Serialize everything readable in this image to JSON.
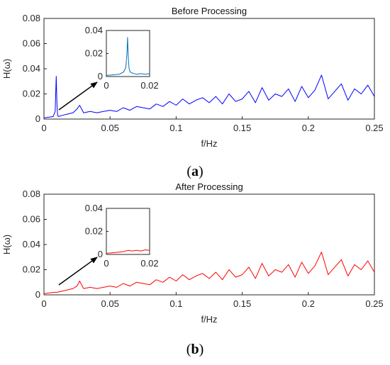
{
  "figure": {
    "panels": [
      {
        "label_left": "(",
        "label_letter": "a",
        "label_right": ")"
      },
      {
        "label_left": "(",
        "label_letter": "b",
        "label_right": ")"
      }
    ]
  },
  "chart_data": [
    {
      "type": "line",
      "title": "Before Processing",
      "xlabel": "f/Hz",
      "ylabel": "H(ω)",
      "xlim": [
        0,
        0.25
      ],
      "ylim": [
        0,
        0.08
      ],
      "xticks": [
        "0",
        "0.05",
        "0.1",
        "0.15",
        "0.2",
        "0.25"
      ],
      "yticks": [
        "0",
        "0.02",
        "0.04",
        "0.06",
        "0.08"
      ],
      "color": "#0000ff",
      "grid": false,
      "series": [
        {
          "x": [
            0,
            0.004,
            0.007,
            0.0085,
            0.0093,
            0.0098,
            0.0103,
            0.011,
            0.014,
            0.018,
            0.022,
            0.025,
            0.027,
            0.03,
            0.035,
            0.04,
            0.045,
            0.05,
            0.055,
            0.06,
            0.065,
            0.07,
            0.075,
            0.08,
            0.085,
            0.09,
            0.095,
            0.1,
            0.105,
            0.11,
            0.115,
            0.12,
            0.125,
            0.13,
            0.135,
            0.14,
            0.145,
            0.15,
            0.155,
            0.16,
            0.165,
            0.17,
            0.175,
            0.18,
            0.185,
            0.19,
            0.195,
            0.2,
            0.205,
            0.21,
            0.215,
            0.22,
            0.225,
            0.23,
            0.235,
            0.24,
            0.245,
            0.25
          ],
          "y": [
            0.001,
            0.0015,
            0.002,
            0.006,
            0.034,
            0.012,
            0.003,
            0.002,
            0.003,
            0.004,
            0.005,
            0.008,
            0.011,
            0.005,
            0.006,
            0.005,
            0.006,
            0.007,
            0.006,
            0.009,
            0.007,
            0.01,
            0.009,
            0.008,
            0.012,
            0.01,
            0.014,
            0.011,
            0.016,
            0.012,
            0.015,
            0.017,
            0.013,
            0.018,
            0.012,
            0.02,
            0.014,
            0.016,
            0.022,
            0.013,
            0.025,
            0.015,
            0.02,
            0.018,
            0.024,
            0.014,
            0.026,
            0.017,
            0.023,
            0.035,
            0.016,
            0.022,
            0.028,
            0.015,
            0.024,
            0.02,
            0.027,
            0.018
          ]
        }
      ],
      "inset": {
        "xlim": [
          0,
          0.02
        ],
        "ylim": [
          0,
          0.04
        ],
        "xticks": [
          "0",
          "0.02"
        ],
        "yticks": [
          "0",
          "0.02",
          "0.04"
        ],
        "color": "#0072bd",
        "x": [
          0,
          0.003,
          0.006,
          0.008,
          0.009,
          0.0095,
          0.0098,
          0.0101,
          0.0105,
          0.011,
          0.012,
          0.014,
          0.016,
          0.018,
          0.02
        ],
        "y": [
          0.001,
          0.0015,
          0.002,
          0.004,
          0.008,
          0.02,
          0.034,
          0.018,
          0.007,
          0.004,
          0.003,
          0.002,
          0.0025,
          0.002,
          0.0025
        ]
      }
    },
    {
      "type": "line",
      "title": "After Processing",
      "xlabel": "f/Hz",
      "ylabel": "H(ω)",
      "xlim": [
        0,
        0.25
      ],
      "ylim": [
        0,
        0.08
      ],
      "xticks": [
        "0",
        "0.05",
        "0.1",
        "0.15",
        "0.2",
        "0.25"
      ],
      "yticks": [
        "0",
        "0.02",
        "0.04",
        "0.06",
        "0.08"
      ],
      "color": "#ff0000",
      "grid": false,
      "series": [
        {
          "x": [
            0,
            0.004,
            0.008,
            0.01,
            0.014,
            0.018,
            0.022,
            0.025,
            0.027,
            0.03,
            0.035,
            0.04,
            0.045,
            0.05,
            0.055,
            0.06,
            0.065,
            0.07,
            0.075,
            0.08,
            0.085,
            0.09,
            0.095,
            0.1,
            0.105,
            0.11,
            0.115,
            0.12,
            0.125,
            0.13,
            0.135,
            0.14,
            0.145,
            0.15,
            0.155,
            0.16,
            0.165,
            0.17,
            0.175,
            0.18,
            0.185,
            0.19,
            0.195,
            0.2,
            0.205,
            0.21,
            0.215,
            0.22,
            0.225,
            0.23,
            0.235,
            0.24,
            0.245,
            0.25
          ],
          "y": [
            0.001,
            0.0015,
            0.002,
            0.002,
            0.003,
            0.004,
            0.005,
            0.007,
            0.011,
            0.005,
            0.006,
            0.005,
            0.006,
            0.007,
            0.006,
            0.009,
            0.007,
            0.01,
            0.009,
            0.008,
            0.012,
            0.01,
            0.014,
            0.011,
            0.016,
            0.012,
            0.015,
            0.017,
            0.013,
            0.018,
            0.012,
            0.02,
            0.014,
            0.016,
            0.022,
            0.013,
            0.025,
            0.015,
            0.02,
            0.018,
            0.024,
            0.014,
            0.026,
            0.017,
            0.023,
            0.034,
            0.016,
            0.022,
            0.028,
            0.015,
            0.024,
            0.02,
            0.027,
            0.018
          ]
        }
      ],
      "inset": {
        "xlim": [
          0,
          0.02
        ],
        "ylim": [
          0,
          0.04
        ],
        "xticks": [
          "0",
          "0.02"
        ],
        "yticks": [
          "0",
          "0.02",
          "0.04"
        ],
        "color": "#ff0000",
        "x": [
          0,
          0.003,
          0.006,
          0.008,
          0.01,
          0.012,
          0.014,
          0.016,
          0.018,
          0.02
        ],
        "y": [
          0.001,
          0.0015,
          0.002,
          0.0025,
          0.0035,
          0.003,
          0.0035,
          0.003,
          0.004,
          0.0035
        ]
      }
    }
  ]
}
